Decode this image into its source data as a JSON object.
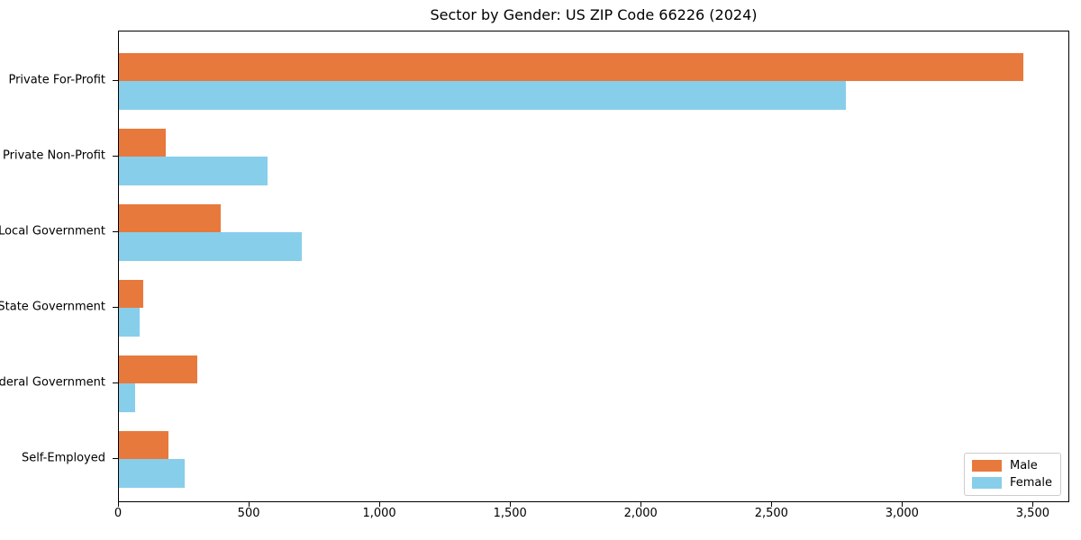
{
  "chart_data": {
    "type": "bar",
    "orientation": "horizontal",
    "title": "Sector by Gender: US ZIP Code 66226 (2024)",
    "categories": [
      "Private For-Profit",
      "Private Non-Profit",
      "Local Government",
      "State Government",
      "Federal Government",
      "Self-Employed"
    ],
    "series": [
      {
        "name": "Male",
        "color": "#E8793C",
        "values": [
          3460,
          180,
          390,
          93,
          300,
          190
        ]
      },
      {
        "name": "Female",
        "color": "#87CEEB",
        "values": [
          2780,
          570,
          700,
          80,
          62,
          250
        ]
      }
    ],
    "xlim": [
      0,
      3640
    ],
    "xticks": [
      0,
      500,
      1000,
      1500,
      2000,
      2500,
      3000,
      3500
    ],
    "xtick_labels": [
      "0",
      "500",
      "1,000",
      "1,500",
      "2,000",
      "2,500",
      "3,000",
      "3,500"
    ],
    "legend": {
      "position": "lower-right"
    },
    "grid": false,
    "background_color": "#ffffff",
    "spine_color": "#000000"
  }
}
